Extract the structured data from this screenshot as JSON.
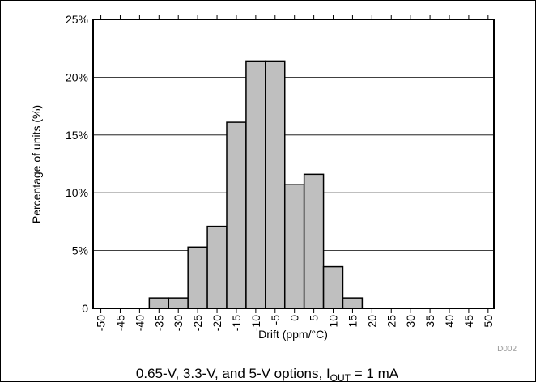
{
  "chart_data": {
    "type": "histogram",
    "x_label": "Drift (ppm/°C)",
    "y_label": "Percentage of units (%)",
    "annotation": "D002",
    "caption": {
      "text": "0.65-V, 3.3-V, and 5-V options, I",
      "sub": "OUT",
      "after": " = 1 mA"
    },
    "bins": [
      -37.5,
      -32.5,
      -27.5,
      -22.5,
      -17.5,
      -12.5,
      -7.5,
      -2.5,
      2.5,
      7.5,
      12.5,
      17.5
    ],
    "values": [
      0.9,
      0.9,
      5.3,
      7.1,
      16.1,
      21.4,
      21.4,
      10.7,
      11.6,
      3.6,
      0.9
    ],
    "color": "#bfbfbf",
    "xlim": [
      -52,
      51.5
    ],
    "xticks": [
      -50,
      -45,
      -40,
      -35,
      -30,
      -25,
      -20,
      -15,
      -10,
      -5,
      0,
      5,
      10,
      15,
      20,
      25,
      30,
      35,
      40,
      45,
      50
    ],
    "ylim": [
      0,
      25
    ],
    "yticks": [
      0,
      {
        "value": 5,
        "label": "5%"
      },
      {
        "value": 10,
        "label": "10%"
      },
      {
        "value": 15,
        "label": "15%"
      },
      {
        "value": 20,
        "label": "20%"
      },
      {
        "value": 25,
        "label": "25%"
      }
    ],
    "grid": true
  }
}
